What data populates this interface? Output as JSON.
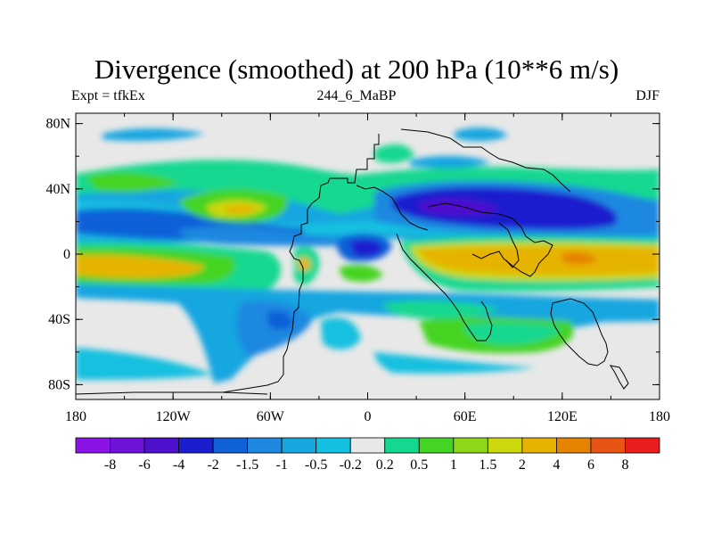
{
  "title": "Divergence (smoothed) at 200 hPa (10**6 m/s)",
  "subtitle_left": "Expt = tfkEx",
  "subtitle_center": "244_6_MaBP",
  "subtitle_right": "DJF",
  "y_ticks": [
    {
      "label": "80N",
      "lat": 80
    },
    {
      "label": "40N",
      "lat": 40
    },
    {
      "label": "0",
      "lat": 0
    },
    {
      "label": "40S",
      "lat": -40
    },
    {
      "label": "80S",
      "lat": -80
    }
  ],
  "x_ticks": [
    {
      "label": "180",
      "lon": -180
    },
    {
      "label": "120W",
      "lon": -120
    },
    {
      "label": "60W",
      "lon": -60
    },
    {
      "label": "0",
      "lon": 0
    },
    {
      "label": "60E",
      "lon": 60
    },
    {
      "label": "120E",
      "lon": 120
    },
    {
      "label": "180",
      "lon": 180
    }
  ],
  "colorbar": {
    "labels": [
      "-8",
      "-6",
      "-4",
      "-2",
      "-1.5",
      "-1",
      "-0.5",
      "-0.2",
      "0.2",
      "0.5",
      "1",
      "1.5",
      "2",
      "4",
      "6",
      "8"
    ],
    "colors": [
      "#8a14e6",
      "#6f12d8",
      "#4d10cc",
      "#1a1ecf",
      "#1060d8",
      "#1e88e0",
      "#16a6e0",
      "#12c0e0",
      "#e8e8e8",
      "#14d890",
      "#44d424",
      "#8cd818",
      "#ccd80c",
      "#e6b400",
      "#e68400",
      "#e85414",
      "#e81e1e"
    ]
  },
  "colors": {
    "background": "#e8e8e8",
    "frame": "#000000",
    "coast": "#000000"
  }
}
